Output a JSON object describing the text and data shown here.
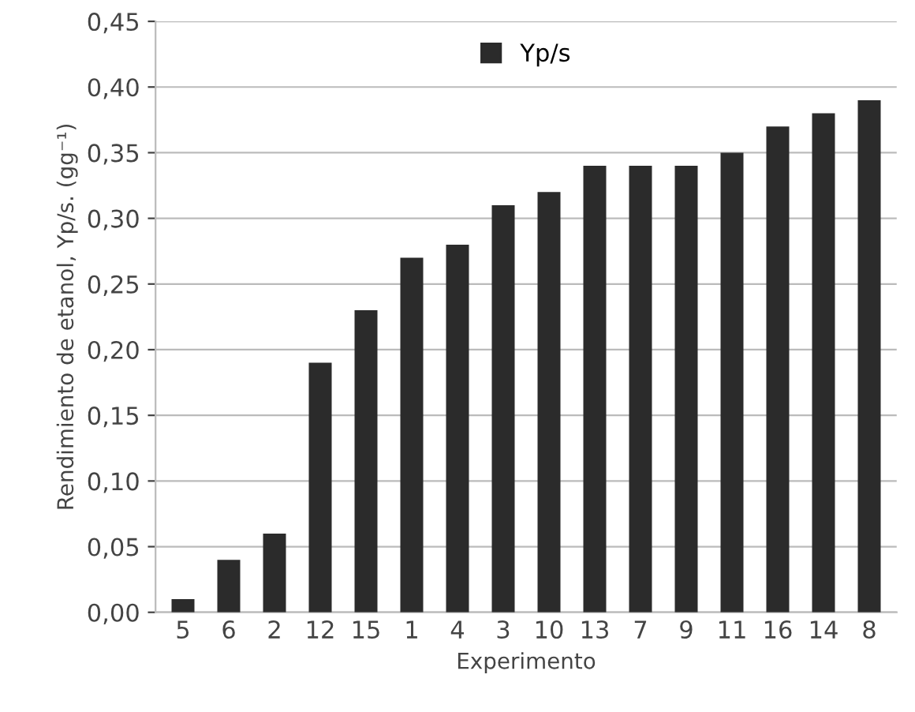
{
  "chart_data": {
    "type": "bar",
    "xlabel": "Experimento",
    "ylabel": "Rendimiento de etanol, Yp/s. (gg⁻¹)",
    "categories": [
      "5",
      "6",
      "2",
      "12",
      "15",
      "1",
      "4",
      "3",
      "10",
      "13",
      "7",
      "9",
      "11",
      "16",
      "14",
      "8"
    ],
    "series": [
      {
        "name": "Yp/s",
        "color": "#2b2b2b",
        "values": [
          0.01,
          0.04,
          0.06,
          0.19,
          0.23,
          0.27,
          0.28,
          0.31,
          0.32,
          0.34,
          0.34,
          0.34,
          0.35,
          0.37,
          0.38,
          0.39
        ]
      }
    ],
    "ylim": [
      0,
      0.45
    ],
    "yticks": [
      {
        "value": 0,
        "label": "0,00"
      },
      {
        "value": 0.05,
        "label": "0,05"
      },
      {
        "value": 0.1,
        "label": "0,10"
      },
      {
        "value": 0.15,
        "label": "0,15"
      },
      {
        "value": 0.2,
        "label": "0,20"
      },
      {
        "value": 0.25,
        "label": "0,25"
      },
      {
        "value": 0.3,
        "label": "0,30"
      },
      {
        "value": 0.35,
        "label": "0,35"
      },
      {
        "value": 0.4,
        "label": "0,40"
      },
      {
        "value": 0.45,
        "label": "0,45"
      }
    ],
    "grid": "y",
    "legend": "top"
  }
}
